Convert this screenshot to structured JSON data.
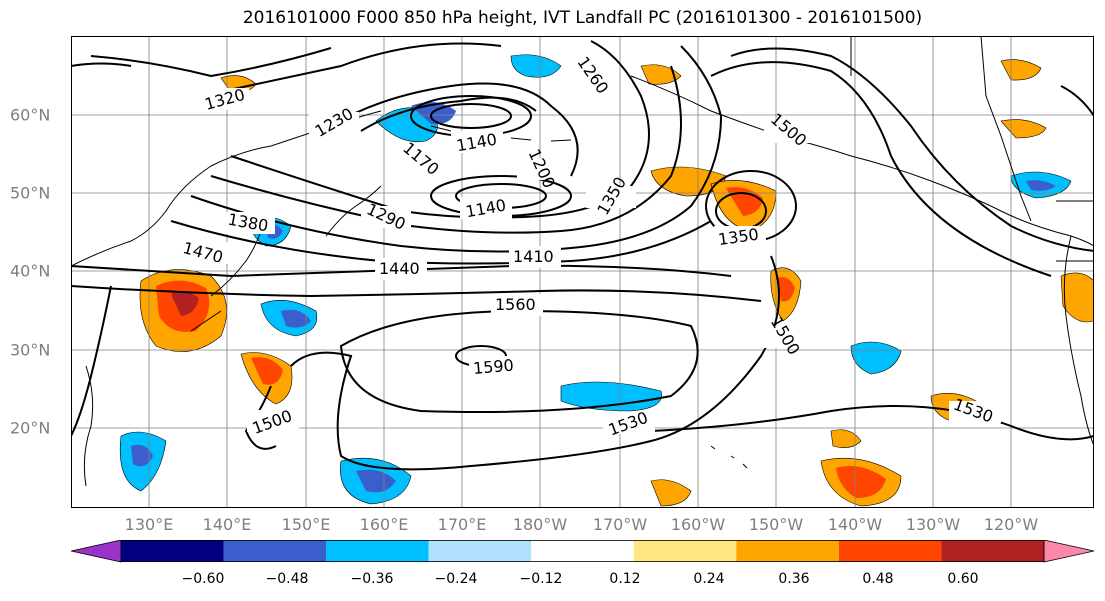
{
  "title": "2016101000 F000 850 hPa height, IVT Landfall PC (2016101300 - 2016101500)",
  "lon_ticks": [
    "130°E",
    "140°E",
    "150°E",
    "160°E",
    "170°E",
    "180°W",
    "170°W",
    "160°W",
    "150°W",
    "140°W",
    "130°W",
    "120°W"
  ],
  "lat_ticks": [
    "60°N",
    "50°N",
    "40°N",
    "30°N",
    "20°N"
  ],
  "contour_labels": [
    "1320",
    "1230",
    "1260",
    "1140",
    "1170",
    "1200",
    "1140",
    "1290",
    "1350",
    "1380",
    "1470",
    "1440",
    "1410",
    "1350",
    "1500",
    "1560",
    "1530",
    "1500",
    "1590",
    "1500",
    "1530",
    "1500",
    "1500",
    "1410",
    "1530",
    "1590",
    "1530"
  ],
  "colorbar": {
    "ticks": [
      "−0.60",
      "−0.48",
      "−0.36",
      "−0.24",
      "−0.12",
      "0.12",
      "0.24",
      "0.36",
      "0.48",
      "0.60"
    ],
    "colors": [
      "#9933cc",
      "#000080",
      "#3a5fcd",
      "#00bfff",
      "#b0e2ff",
      "#ffffff",
      "#ffe680",
      "#ffa500",
      "#ff4500",
      "#b22222",
      "#ff88aa"
    ]
  },
  "colors": {
    "contour": "#000000",
    "land_outline": "#000000",
    "gridline": "#808080",
    "tick_label": "#7f7f7f"
  }
}
